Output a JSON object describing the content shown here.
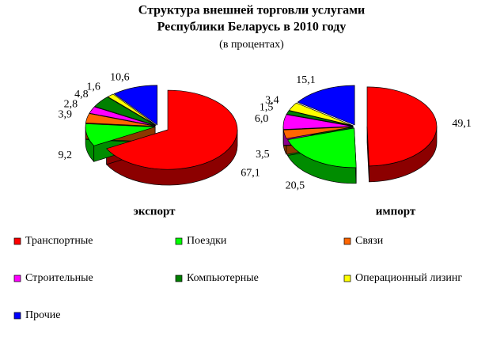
{
  "header": {
    "title": [
      "Структура внешней торговли услугами",
      "Республики Беларусь в 2010 году"
    ],
    "subtitle": "(в процентах)"
  },
  "chart_data": [
    {
      "type": "pie3d",
      "label": "экспорт",
      "categories": [
        "Транспортные",
        "Поездки",
        "Связи",
        "Строительные",
        "Компьютерные",
        "Операционный лизинг",
        "Прочие"
      ],
      "values": [
        67.1,
        9.2,
        3.9,
        2.8,
        4.8,
        1.6,
        10.6
      ],
      "value_labels": [
        "67,1",
        "9,2",
        "3,9",
        "2,8",
        "4,8",
        "1,6",
        "10,6"
      ],
      "colors": [
        "#ff0000",
        "#00ff00",
        "#ff6600",
        "#ff00ff",
        "#008000",
        "#ffff00",
        "#0000ff"
      ]
    },
    {
      "type": "pie3d",
      "label": "импорт",
      "categories": [
        "Транспортные",
        "Поездки",
        "Связи",
        "Строительные",
        "Компьютерные",
        "Операционный лизинг",
        "Прочие"
      ],
      "values": [
        49.1,
        20.5,
        3.5,
        6.0,
        1.5,
        3.4,
        15.1
      ],
      "value_labels": [
        "49,1",
        "20,5",
        "3,5",
        "6,0",
        "1,5",
        "3,4",
        "15,1"
      ],
      "colors": [
        "#ff0000",
        "#00ff00",
        "#ff6600",
        "#ff00ff",
        "#008000",
        "#ffff00",
        "#0000ff"
      ]
    }
  ]
}
